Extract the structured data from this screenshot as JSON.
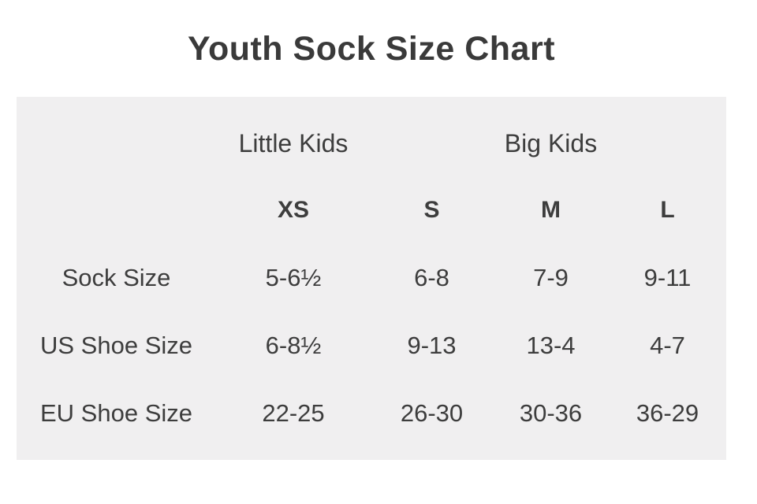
{
  "title": "Youth Sock Size Chart",
  "chart_data": {
    "type": "table",
    "title": "Youth Sock Size Chart",
    "group_headers": [
      {
        "label": "Little Kids",
        "over_column": "XS"
      },
      {
        "label": "Big Kids",
        "over_column": "M"
      }
    ],
    "columns": [
      "",
      "XS",
      "S",
      "M",
      "L"
    ],
    "rows": [
      {
        "label": "Sock Size",
        "values": [
          "5-6½",
          "6-8",
          "7-9",
          "9-11"
        ]
      },
      {
        "label": "US Shoe Size",
        "values": [
          "6-8½",
          "9-13",
          "13-4",
          "4-7"
        ]
      },
      {
        "label": "EU Shoe Size",
        "values": [
          "22-25",
          "26-30",
          "30-36",
          "36-29"
        ]
      }
    ]
  },
  "colors": {
    "panel_background": "#f0eff0",
    "text": "#3d3d3d",
    "page_background": "#ffffff"
  }
}
